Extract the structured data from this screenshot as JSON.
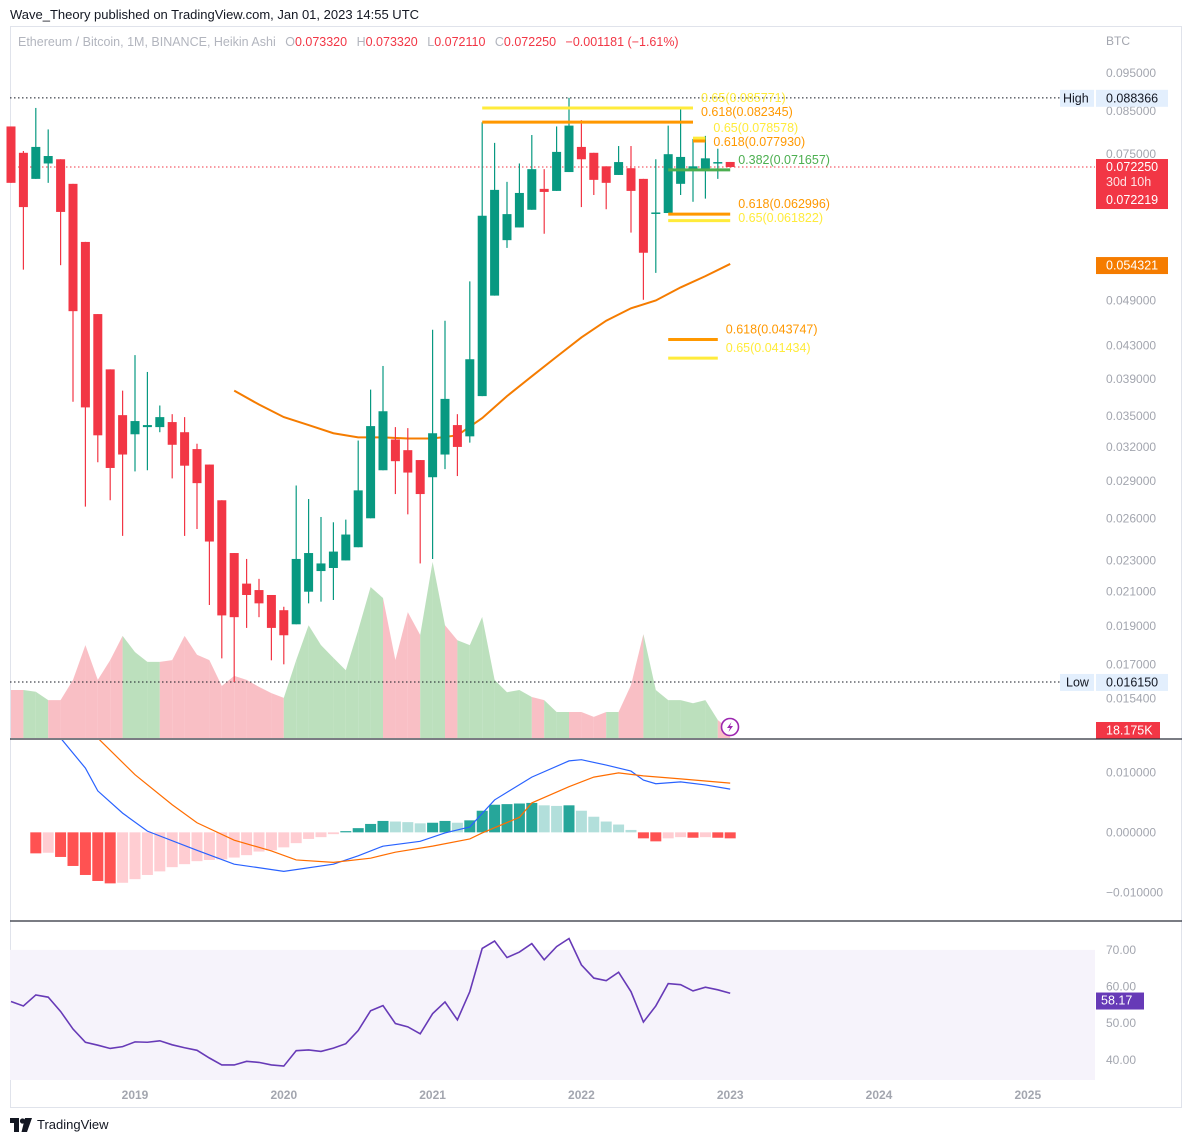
{
  "header": {
    "published": "Wave_Theory published on TradingView.com, Jan 01, 2023 14:55 UTC"
  },
  "legend": {
    "symbol": "Ethereum / Bitcoin, 1M, BINANCE, Heikin Ashi",
    "o_key": "O",
    "o": "0.073320",
    "h_key": "H",
    "h": "0.073320",
    "l_key": "L",
    "l": "0.072110",
    "c_key": "C",
    "c": "0.072250",
    "change": "−0.001181 (−1.61%)"
  },
  "footer": {
    "brand": "TradingView"
  },
  "colors": {
    "up": "#089981",
    "down": "#f23645",
    "vol_up": "#a5d6a7",
    "vol_down": "#f7a9b1",
    "ma": "#f57c00",
    "macd": "#2962ff",
    "signal": "#ff6d00",
    "hist_up_strong": "#26a69a",
    "hist_up_weak": "#b2dfdb",
    "hist_down_strong": "#ff5252",
    "hist_down_weak": "#ffcdd2",
    "rsi": "#673ab7",
    "rsi_band": "#f6f3fb",
    "fib_618": "#ff9800",
    "fib_65": "#ffeb3b",
    "fib_382": "#4caf50"
  },
  "chart_data": [
    {
      "type": "candlestick",
      "pane": "price",
      "scale": "log",
      "ylim": [
        0.01372,
        0.1089
      ],
      "currency_label": "BTC",
      "y_ticks": [
        "0.095000",
        "0.085000",
        "0.075000",
        "0.049000",
        "0.043000",
        "0.039000",
        "0.035000",
        "0.032000",
        "0.029000",
        "0.026000",
        "0.023000",
        "0.021000",
        "0.019000",
        "0.017000",
        "0.015400"
      ],
      "x_ticks": [
        "2019",
        "2020",
        "2021",
        "2022",
        "2023",
        "2024",
        "2025"
      ],
      "candles": [
        [
          "2018-03",
          0.0813,
          0.0813,
          0.069,
          0.069
        ],
        [
          "2018-04",
          0.0753,
          0.0757,
          0.0536,
          0.0643
        ],
        [
          "2018-05",
          0.0698,
          0.0858,
          0.0698,
          0.0766
        ],
        [
          "2018-06",
          0.073,
          0.0806,
          0.069,
          0.0746
        ],
        [
          "2018-07",
          0.0739,
          0.0739,
          0.0543,
          0.0634
        ],
        [
          "2018-08",
          0.0688,
          0.0688,
          0.0365,
          0.0475
        ],
        [
          "2018-09",
          0.0581,
          0.0581,
          0.0269,
          0.0359
        ],
        [
          "2018-10",
          0.0471,
          0.0471,
          0.0306,
          0.0331
        ],
        [
          "2018-11",
          0.0401,
          0.0401,
          0.0274,
          0.0301
        ],
        [
          "2018-12",
          0.0351,
          0.0377,
          0.0247,
          0.0313
        ],
        [
          "2019-01",
          0.0332,
          0.0418,
          0.0298,
          0.0345
        ],
        [
          "2019-02",
          0.0339,
          0.0398,
          0.0299,
          0.0341
        ],
        [
          "2019-03",
          0.0339,
          0.0361,
          0.0334,
          0.0349
        ],
        [
          "2019-04",
          0.0344,
          0.0352,
          0.0292,
          0.0322
        ],
        [
          "2019-05",
          0.0334,
          0.0349,
          0.0247,
          0.0303
        ],
        [
          "2019-06",
          0.0318,
          0.0323,
          0.0252,
          0.0288
        ],
        [
          "2019-07",
          0.0304,
          0.0304,
          0.0202,
          0.0243
        ],
        [
          "2019-08",
          0.0274,
          0.0274,
          0.0173,
          0.0196
        ],
        [
          "2019-09",
          0.0235,
          0.0235,
          0.01615,
          0.0195
        ],
        [
          "2019-10",
          0.0215,
          0.0231,
          0.0189,
          0.0208
        ],
        [
          "2019-11",
          0.0211,
          0.0218,
          0.0195,
          0.0203
        ],
        [
          "2019-12",
          0.0208,
          0.0208,
          0.0172,
          0.0189
        ],
        [
          "2020-01",
          0.0199,
          0.0201,
          0.017,
          0.0185
        ],
        [
          "2020-02",
          0.0191,
          0.0286,
          0.0191,
          0.0231
        ],
        [
          "2020-03",
          0.021,
          0.0275,
          0.0203,
          0.0235
        ],
        [
          "2020-04",
          0.0223,
          0.0261,
          0.0204,
          0.0228
        ],
        [
          "2020-05",
          0.0225,
          0.0257,
          0.0205,
          0.0236
        ],
        [
          "2020-06",
          0.023,
          0.0259,
          0.023,
          0.0248
        ],
        [
          "2020-07",
          0.0239,
          0.0326,
          0.0239,
          0.0282
        ],
        [
          "2020-08",
          0.026,
          0.0378,
          0.026,
          0.034
        ],
        [
          "2020-09",
          0.0299,
          0.0405,
          0.0299,
          0.0355
        ],
        [
          "2020-10",
          0.0327,
          0.0339,
          0.0279,
          0.0307
        ],
        [
          "2020-11",
          0.0317,
          0.0338,
          0.0263,
          0.0297
        ],
        [
          "2020-12",
          0.0308,
          0.0308,
          0.0228,
          0.0279
        ],
        [
          "2021-01",
          0.0293,
          0.045,
          0.0231,
          0.0333
        ],
        [
          "2021-02",
          0.0313,
          0.0462,
          0.03,
          0.0368
        ],
        [
          "2021-03",
          0.0341,
          0.0352,
          0.0294,
          0.032
        ],
        [
          "2021-04",
          0.033,
          0.0518,
          0.0324,
          0.0413
        ],
        [
          "2021-05",
          0.0371,
          0.0823,
          0.0371,
          0.0627
        ],
        [
          "2021-06",
          0.0497,
          0.0775,
          0.0497,
          0.0676
        ],
        [
          "2021-07",
          0.0584,
          0.0692,
          0.0571,
          0.063
        ],
        [
          "2021-08",
          0.0606,
          0.073,
          0.0606,
          0.067
        ],
        [
          "2021-09",
          0.0638,
          0.0793,
          0.0638,
          0.0718
        ],
        [
          "2021-10",
          0.0678,
          0.0718,
          0.0595,
          0.0672
        ],
        [
          "2021-11",
          0.0674,
          0.0813,
          0.0674,
          0.0755
        ],
        [
          "2021-12",
          0.0712,
          0.088366,
          0.0712,
          0.0815
        ],
        [
          "2022-01",
          0.0766,
          0.0828,
          0.0643,
          0.0739
        ],
        [
          "2022-02",
          0.0753,
          0.0753,
          0.0666,
          0.0696
        ],
        [
          "2022-03",
          0.0724,
          0.0724,
          0.0639,
          0.069
        ],
        [
          "2022-04",
          0.0706,
          0.0768,
          0.0706,
          0.0733
        ],
        [
          "2022-05",
          0.072,
          0.0768,
          0.0597,
          0.0674
        ],
        [
          "2022-06",
          0.0698,
          0.0698,
          0.0491,
          0.0563
        ],
        [
          "2022-07",
          0.0631,
          0.0739,
          0.0531,
          0.0633
        ],
        [
          "2022-08",
          0.0632,
          0.0815,
          0.0632,
          0.075
        ],
        [
          "2022-09",
          0.0688,
          0.0856,
          0.0666,
          0.0744
        ],
        [
          "2022-10",
          0.0718,
          0.0784,
          0.0653,
          0.0724
        ],
        [
          "2022-11",
          0.0718,
          0.0791,
          0.0659,
          0.0741
        ],
        [
          "2022-12",
          0.0731,
          0.0762,
          0.0698,
          0.0733
        ],
        [
          "2023-01",
          0.07332,
          0.07332,
          0.07211,
          0.07225
        ]
      ],
      "moving_average": [
        [
          "2019-09",
          0.0377
        ],
        [
          "2019-11",
          0.0362
        ],
        [
          "2020-01",
          0.0349
        ],
        [
          "2020-03",
          0.0341
        ],
        [
          "2020-05",
          0.0333
        ],
        [
          "2020-07",
          0.0329
        ],
        [
          "2020-09",
          0.0329
        ],
        [
          "2020-11",
          0.0328
        ],
        [
          "2021-01",
          0.0328
        ],
        [
          "2021-03",
          0.0331
        ],
        [
          "2021-05",
          0.0348
        ],
        [
          "2021-07",
          0.0371
        ],
        [
          "2021-09",
          0.0393
        ],
        [
          "2021-11",
          0.0416
        ],
        [
          "2022-01",
          0.044
        ],
        [
          "2022-03",
          0.0462
        ],
        [
          "2022-05",
          0.0479
        ],
        [
          "2022-07",
          0.049
        ],
        [
          "2022-09",
          0.0509
        ],
        [
          "2022-11",
          0.0526
        ],
        [
          "2023-01",
          0.0545
        ]
      ],
      "fib_levels": [
        {
          "label": "0.65(0.085771)",
          "value": 0.085771,
          "ratio": "0.65",
          "from": "2021-05",
          "to": "2022-10"
        },
        {
          "label": "0.618(0.082345)",
          "value": 0.082345,
          "ratio": "0.618",
          "from": "2021-05",
          "to": "2022-10"
        },
        {
          "label": "0.65(0.078578)",
          "value": 0.078578,
          "ratio": "0.65",
          "from": "2022-10",
          "to": "2022-11"
        },
        {
          "label": "0.618(0.077930)",
          "value": 0.07793,
          "ratio": "0.618",
          "from": "2022-10",
          "to": "2022-11"
        },
        {
          "label": "0.382(0.071657)",
          "value": 0.071657,
          "ratio": "0.382",
          "from": "2022-08",
          "to": "2023-01"
        },
        {
          "label": "0.618(0.062996)",
          "value": 0.062996,
          "ratio": "0.618",
          "from": "2022-08",
          "to": "2023-01"
        },
        {
          "label": "0.65(0.061822)",
          "value": 0.061822,
          "ratio": "0.65",
          "from": "2022-08",
          "to": "2023-01"
        },
        {
          "label": "0.618(0.043747)",
          "value": 0.043747,
          "ratio": "0.618",
          "from": "2022-08",
          "to": "2022-12"
        },
        {
          "label": "0.65(0.041434)",
          "value": 0.041434,
          "ratio": "0.65",
          "from": "2022-08",
          "to": "2022-12"
        }
      ],
      "high": {
        "label": "High",
        "value": "0.088366"
      },
      "low": {
        "label": "Low",
        "value": "0.016150"
      },
      "last_price": {
        "value": "0.072250",
        "countdown": "30d 10h",
        "second_value": "0.072219"
      },
      "ma_last": "0.054321"
    },
    {
      "type": "area",
      "pane": "volume",
      "ylim_k": [
        0,
        1617
      ],
      "last_label": "18.175K",
      "values_k": [
        109,
        109,
        105,
        86,
        86,
        132,
        211,
        132,
        177,
        232,
        195,
        173,
        173,
        177,
        232,
        189,
        177,
        118,
        141,
        132,
        116,
        102,
        91,
        177,
        256,
        211,
        182,
        154,
        245,
        343,
        318,
        177,
        286,
        234,
        400,
        256,
        222,
        211,
        275,
        132,
        104,
        109,
        93,
        86,
        59,
        59,
        59,
        48,
        59,
        59,
        120,
        236,
        109,
        86,
        86,
        79,
        86,
        41,
        18.175
      ]
    },
    {
      "type": "macd",
      "pane": "macd",
      "ylim": [
        -0.0146,
        0.01538
      ],
      "y_ticks": [
        "0.010000",
        "0.000000",
        "−0.010000"
      ],
      "histogram": [
        null,
        null,
        -0.0035,
        -0.0034,
        -0.0041,
        -0.0056,
        -0.0071,
        -0.0081,
        -0.0085,
        -0.0084,
        -0.0078,
        -0.0071,
        -0.0065,
        -0.0058,
        -0.0053,
        -0.0048,
        -0.0046,
        -0.0045,
        -0.0042,
        -0.0038,
        -0.0032,
        -0.003,
        -0.0025,
        -0.0018,
        -0.0011,
        -0.0008,
        -0.0003,
        0.0002,
        0.0007,
        0.0014,
        0.0019,
        0.0018,
        0.0017,
        0.0015,
        0.0016,
        0.0019,
        0.0016,
        0.002,
        0.0036,
        0.0046,
        0.0047,
        0.0048,
        0.0049,
        0.0045,
        0.0044,
        0.0045,
        0.0036,
        0.0026,
        0.0018,
        0.0013,
        0.0004,
        -0.001,
        -0.0015,
        -0.001,
        -0.0008,
        -0.0009,
        -0.0008,
        -0.0009,
        -0.001
      ],
      "macd_line": [
        [
          "2018-07",
          0.0157
        ],
        [
          "2018-09",
          0.0107
        ],
        [
          "2018-10",
          0.0069
        ],
        [
          "2018-12",
          0.0032
        ],
        [
          "2019-02",
          0.0002
        ],
        [
          "2019-06",
          -0.003
        ],
        [
          "2019-09",
          -0.0053
        ],
        [
          "2020-01",
          -0.0065
        ],
        [
          "2020-05",
          -0.0053
        ],
        [
          "2020-07",
          -0.0039
        ],
        [
          "2020-09",
          -0.0023
        ],
        [
          "2020-12",
          -0.0015
        ],
        [
          "2021-02",
          -0.0001
        ],
        [
          "2021-04",
          0.0009
        ],
        [
          "2021-06",
          0.0054
        ],
        [
          "2021-09",
          0.0092
        ],
        [
          "2021-12",
          0.0119
        ],
        [
          "2022-01",
          0.0121
        ],
        [
          "2022-03",
          0.0112
        ],
        [
          "2022-05",
          0.0102
        ],
        [
          "2022-06",
          0.0087
        ],
        [
          "2022-07",
          0.0081
        ],
        [
          "2022-09",
          0.0084
        ],
        [
          "2022-11",
          0.0079
        ],
        [
          "2023-01",
          0.0072
        ]
      ],
      "signal_line": [
        [
          "2018-10",
          0.0157
        ],
        [
          "2019-01",
          0.0096
        ],
        [
          "2019-04",
          0.0046
        ],
        [
          "2019-06",
          0.0016
        ],
        [
          "2019-09",
          -0.0013
        ],
        [
          "2019-12",
          -0.0031
        ],
        [
          "2020-02",
          -0.0046
        ],
        [
          "2020-05",
          -0.005
        ],
        [
          "2020-08",
          -0.0043
        ],
        [
          "2020-10",
          -0.0033
        ],
        [
          "2021-01",
          -0.0023
        ],
        [
          "2021-04",
          -0.0011
        ],
        [
          "2021-05",
          -0.0001
        ],
        [
          "2021-08",
          0.0025
        ],
        [
          "2021-09",
          0.0049
        ],
        [
          "2021-12",
          0.0076
        ],
        [
          "2022-02",
          0.0092
        ],
        [
          "2022-04",
          0.0099
        ],
        [
          "2022-06",
          0.0094
        ],
        [
          "2022-09",
          0.0089
        ],
        [
          "2023-01",
          0.0082
        ]
      ]
    },
    {
      "type": "line",
      "pane": "rsi",
      "ylim": [
        34.5,
        77.6
      ],
      "band": [
        30,
        70
      ],
      "y_ticks": [
        "70.00",
        "60.00",
        "50.00",
        "40.00"
      ],
      "last_label": "58.17",
      "values": [
        55.9,
        54.7,
        57.7,
        57.1,
        53.2,
        48.4,
        44.8,
        44.0,
        43.1,
        43.6,
        44.9,
        44.8,
        45.2,
        44.1,
        43.3,
        42.6,
        40.5,
        38.6,
        38.6,
        39.6,
        39.3,
        38.6,
        38.3,
        42.5,
        42.7,
        42.3,
        43.2,
        44.4,
        48.0,
        53.4,
        54.8,
        49.9,
        49.0,
        47.1,
        52.6,
        55.8,
        50.9,
        58.6,
        70.4,
        72.4,
        67.9,
        69.4,
        71.7,
        67.3,
        70.9,
        73.1,
        65.9,
        62.3,
        61.6,
        63.9,
        58.6,
        50.3,
        54.7,
        60.8,
        60.5,
        58.8,
        59.8,
        59.1,
        58.17
      ]
    }
  ]
}
